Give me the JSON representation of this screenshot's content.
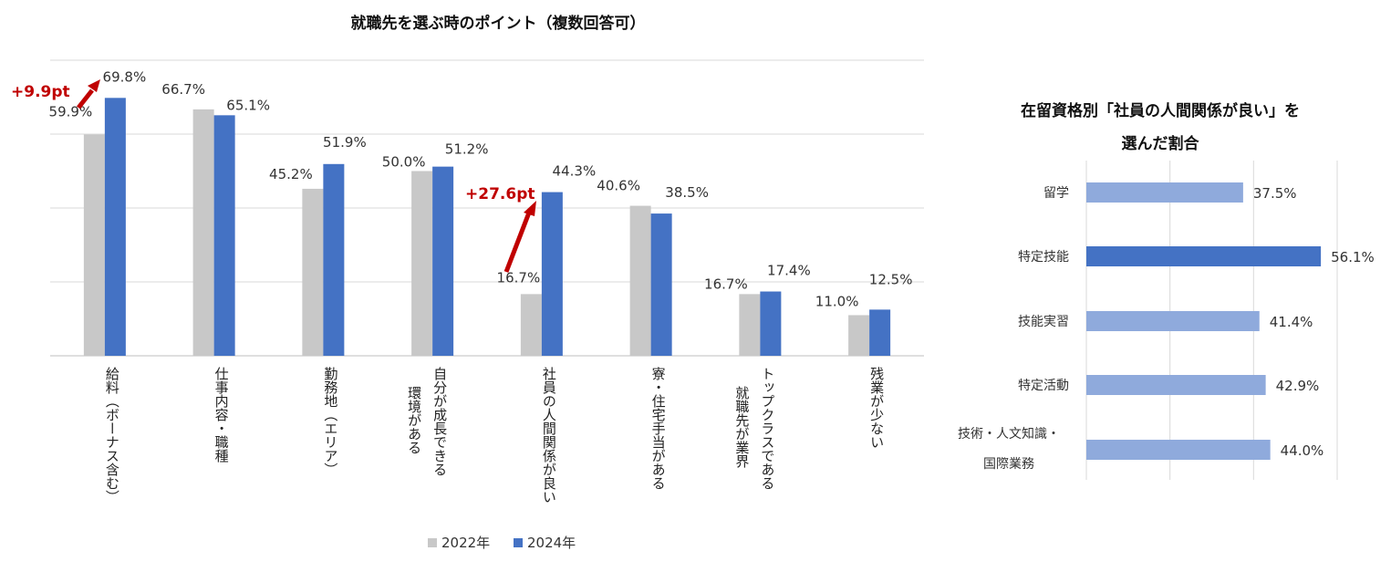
{
  "chart_data": [
    {
      "type": "bar",
      "title": "就職先を選ぶ時のポイント（複数回答可）",
      "categories": [
        [
          "給料（ボーナス含む）"
        ],
        [
          "仕事内容・職種"
        ],
        [
          "勤務地（エリア）"
        ],
        [
          "自分が成長できる",
          "環境がある"
        ],
        [
          "社員の人間関係が良い"
        ],
        [
          "寮・住宅手当がある"
        ],
        [
          "トップクラスである",
          "就職先が業界"
        ],
        [
          "残業が少ない"
        ]
      ],
      "series": [
        {
          "name": "2022年",
          "color": "#C8C8C8",
          "values": [
            59.9,
            66.7,
            45.2,
            50.0,
            16.7,
            40.6,
            16.7,
            11.0
          ],
          "labels": [
            "59.9%",
            "66.7%",
            "45.2%",
            "50.0%",
            "16.7%",
            "40.6%",
            "16.7%",
            "11.0%"
          ]
        },
        {
          "name": "2024年",
          "color": "#4472C4",
          "values": [
            69.8,
            65.1,
            51.9,
            51.2,
            44.3,
            38.5,
            17.4,
            12.5
          ],
          "labels": [
            "69.8%",
            "65.1%",
            "51.9%",
            "51.2%",
            "44.3%",
            "38.5%",
            "17.4%",
            "12.5%"
          ]
        }
      ],
      "ylim": [
        0,
        80
      ],
      "gridlines": true,
      "legend": "bottom",
      "annotations": [
        {
          "text": "+9.9pt",
          "category_index": 0
        },
        {
          "text": "+27.6pt",
          "category_index": 4
        }
      ]
    },
    {
      "type": "bar",
      "orientation": "horizontal",
      "title": [
        "在留資格別「社員の人間関係が良い」を",
        "選んだ割合"
      ],
      "categories": [
        [
          "留学"
        ],
        [
          "特定技能"
        ],
        [
          "技能実習"
        ],
        [
          "特定活動"
        ],
        [
          "技術・人文知識・",
          "国際業務"
        ]
      ],
      "values": [
        37.5,
        56.1,
        41.4,
        42.9,
        44.0
      ],
      "labels": [
        "37.5%",
        "56.1%",
        "41.4%",
        "42.9%",
        "44.0%"
      ],
      "colors": [
        "#8FAADC",
        "#4472C4",
        "#8FAADC",
        "#8FAADC",
        "#8FAADC"
      ],
      "xlim": [
        0,
        60
      ],
      "gridlines": true
    }
  ]
}
